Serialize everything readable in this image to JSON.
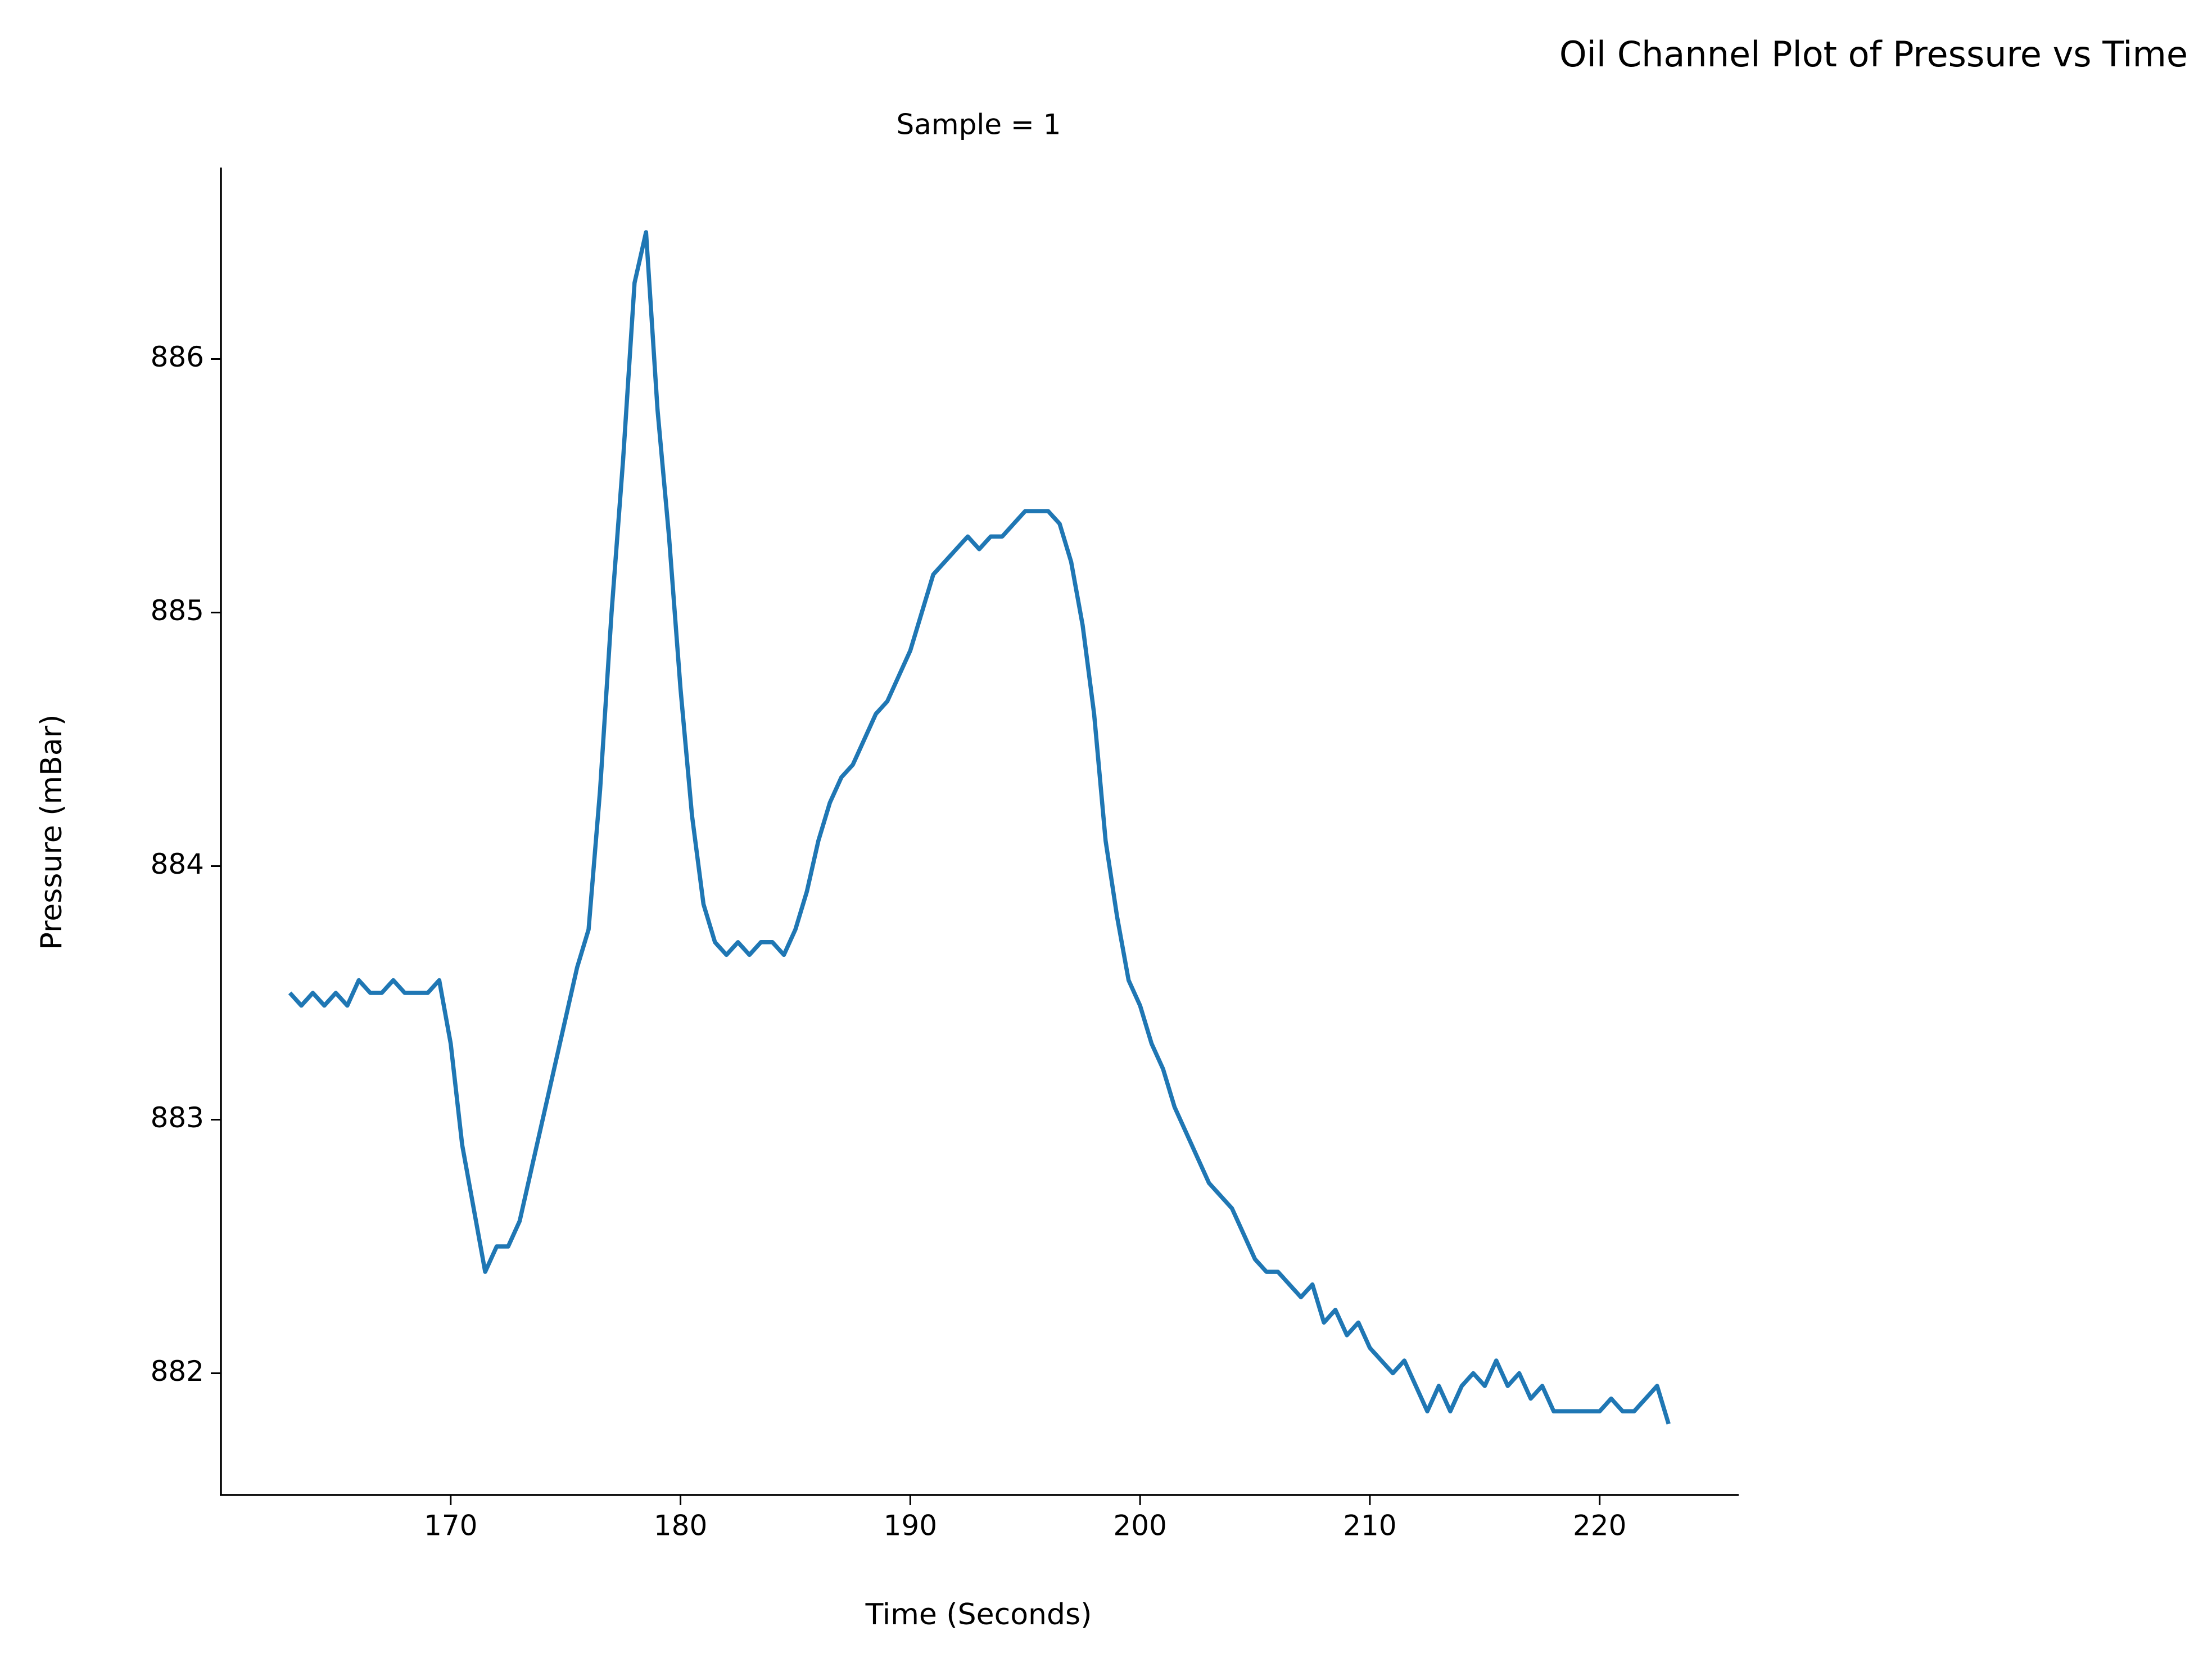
{
  "chart_data": {
    "type": "line",
    "title": "Oil Channel Plot of Pressure vs Time",
    "subtitle": "Sample = 1",
    "x_label": "Time (Seconds)",
    "y_label": "Pressure (mBar)",
    "color": "#1f77b4",
    "x": [
      163,
      163.5,
      164,
      164.5,
      165,
      165.5,
      166,
      166.5,
      167,
      167.5,
      168,
      168.5,
      169,
      169.5,
      170,
      170.5,
      171,
      171.5,
      172,
      172.5,
      173,
      173.5,
      174,
      174.5,
      175,
      175.5,
      176,
      176.5,
      177,
      177.5,
      178,
      178.5,
      179,
      179.5,
      180,
      180.5,
      181,
      181.5,
      182,
      182.5,
      183,
      183.5,
      184,
      184.5,
      185,
      185.5,
      186,
      186.5,
      187,
      187.5,
      188,
      188.5,
      189,
      189.5,
      190,
      190.5,
      191,
      191.5,
      192,
      192.5,
      193,
      193.5,
      194,
      194.5,
      195,
      195.5,
      196,
      196.5,
      197,
      197.5,
      198,
      198.5,
      199,
      199.5,
      200,
      200.5,
      201,
      201.5,
      202,
      202.5,
      203,
      203.5,
      204,
      204.5,
      205,
      205.5,
      206,
      206.5,
      207,
      207.5,
      208,
      208.5,
      209,
      209.5,
      210,
      210.5,
      211,
      211.5,
      212,
      212.5,
      213,
      213.5,
      214,
      214.5,
      215,
      215.5,
      216,
      216.5,
      217,
      217.5,
      218,
      218.5,
      219,
      219.5,
      220,
      220.5,
      221,
      221.5,
      222,
      222.5,
      223
    ],
    "values": [
      883.5,
      883.45,
      883.5,
      883.45,
      883.5,
      883.45,
      883.55,
      883.5,
      883.5,
      883.55,
      883.5,
      883.5,
      883.5,
      883.55,
      883.3,
      882.9,
      882.65,
      882.4,
      882.5,
      882.5,
      882.6,
      882.8,
      883.0,
      883.2,
      883.4,
      883.6,
      883.75,
      884.3,
      885.0,
      885.6,
      886.3,
      886.5,
      885.8,
      885.3,
      884.7,
      884.2,
      883.85,
      883.7,
      883.65,
      883.7,
      883.65,
      883.7,
      883.7,
      883.65,
      883.75,
      883.9,
      884.1,
      884.25,
      884.35,
      884.4,
      884.5,
      884.6,
      884.65,
      884.75,
      884.85,
      885.0,
      885.15,
      885.2,
      885.25,
      885.3,
      885.25,
      885.3,
      885.3,
      885.35,
      885.4,
      885.4,
      885.4,
      885.35,
      885.2,
      884.95,
      884.6,
      884.1,
      883.8,
      883.55,
      883.45,
      883.3,
      883.2,
      883.05,
      882.95,
      882.85,
      882.75,
      882.7,
      882.65,
      882.55,
      882.45,
      882.4,
      882.4,
      882.35,
      882.3,
      882.35,
      882.2,
      882.25,
      882.15,
      882.2,
      882.1,
      882.05,
      882.0,
      882.05,
      881.95,
      881.85,
      881.95,
      881.85,
      881.95,
      882.0,
      881.95,
      882.05,
      881.95,
      882.0,
      881.9,
      881.95,
      881.85,
      881.85,
      881.85,
      881.85,
      881.85,
      881.9,
      881.85,
      881.85,
      881.9,
      881.95,
      881.8
    ],
    "xlim": [
      160,
      226.05
    ],
    "ylim": [
      881.52,
      886.755
    ],
    "xticks": [
      170,
      180,
      190,
      200,
      210,
      220
    ],
    "yticks": [
      882,
      883,
      884,
      885,
      886
    ]
  }
}
